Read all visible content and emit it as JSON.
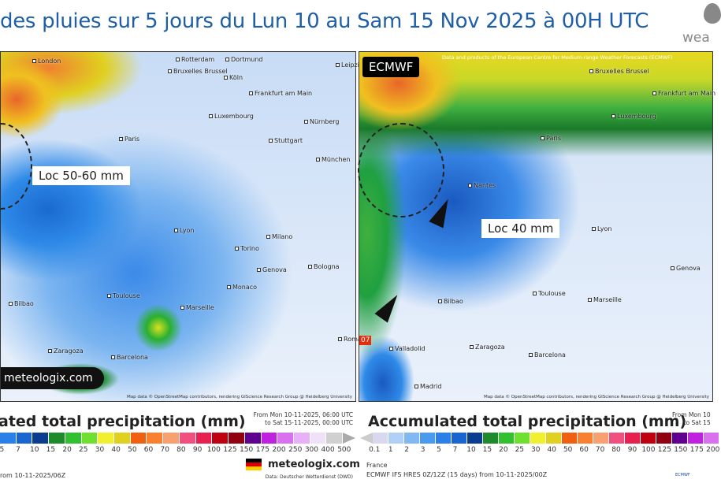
{
  "title": "des pluies sur 5 jours du Lun 10 au Sam 15 Nov 2025 à 00H UTC",
  "brand": "wea",
  "left_map": {
    "cities": [
      [
        "London",
        40,
        7
      ],
      [
        "Rotterdam",
        222,
        5
      ],
      [
        "Dortmund",
        285,
        5
      ],
      [
        "Köln",
        283,
        28
      ],
      [
        "Leipzig",
        425,
        12
      ],
      [
        "Bruxelles Brussel",
        212,
        20
      ],
      [
        "Frankfurt am Main",
        315,
        48
      ],
      [
        "Luxembourg",
        264,
        77
      ],
      [
        "Nürnberg",
        385,
        84
      ],
      [
        "Paris",
        150,
        106
      ],
      [
        "Stuttgart",
        340,
        108
      ],
      [
        "München",
        400,
        132
      ],
      [
        "Lyon",
        220,
        222
      ],
      [
        "Milano",
        337,
        230
      ],
      [
        "Torino",
        297,
        245
      ],
      [
        "Bologna",
        390,
        268
      ],
      [
        "Genova",
        325,
        272
      ],
      [
        "Monaco",
        287,
        294
      ],
      [
        "Marseille",
        228,
        320
      ],
      [
        "Toulouse",
        135,
        305
      ],
      [
        "Bilbao",
        10,
        315
      ],
      [
        "Zaragoza",
        60,
        375
      ],
      [
        "Barcelona",
        140,
        383
      ],
      [
        "Roma",
        428,
        360
      ]
    ],
    "callout": "Loc 50-60 mm",
    "logo": "meteologix.com",
    "attribution": "Map data © OpenStreetMap contributors, rendering GIScience Research Group @ Heidelberg University"
  },
  "right_map": {
    "tag": "ECMWF",
    "header": "Data and products of the European Centre for Medium-range Weather Forecasts (ECMWF)",
    "cities": [
      [
        "Bruxelles Brussel",
        292,
        20
      ],
      [
        "Frankfurt am Main",
        372,
        48
      ],
      [
        "Luxembourg",
        320,
        77
      ],
      [
        "Paris",
        230,
        105
      ],
      [
        "Nantes",
        138,
        165
      ],
      [
        "Lyon",
        295,
        220
      ],
      [
        "Toulouse",
        220,
        302
      ],
      [
        "Marseille",
        290,
        310
      ],
      [
        "Bilbao",
        100,
        312
      ],
      [
        "Valladolid",
        38,
        372
      ],
      [
        "Zaragoza",
        140,
        370
      ],
      [
        "Barcelona",
        215,
        380
      ],
      [
        "Madrid",
        70,
        420
      ],
      [
        "Genova",
        395,
        270
      ]
    ],
    "callout": "Loc 40 mm",
    "marker": "07",
    "attribution": "Map data © OpenStreetMap contributors, rendering GIScience Research Group @ Heidelberg University"
  },
  "left_legend": {
    "title": "ated total precipitation (mm)",
    "period_from": "From Mon 10-11-2025, 06:00 UTC",
    "period_to": "to Sat 15-11-2025, 00:00 UTC",
    "ticks": [
      "5",
      "7",
      "10",
      "15",
      "20",
      "25",
      "30",
      "40",
      "50",
      "60",
      "70",
      "80",
      "90",
      "100",
      "125",
      "150",
      "175",
      "200",
      "250",
      "300",
      "400",
      "500"
    ],
    "run": "rom  10-11-2025/06Z",
    "site": "meteologix.com",
    "source": "Data: Deutscher Wetterdienst (DWD)"
  },
  "right_legend": {
    "title": "Accumulated total precipitation (mm)",
    "period_from": "From Mon 10",
    "period_to": "to Sat 15",
    "ticks": [
      "0.1",
      "1",
      "2",
      "3",
      "5",
      "7",
      "10",
      "15",
      "20",
      "25",
      "30",
      "40",
      "50",
      "60",
      "70",
      "80",
      "90",
      "100",
      "125",
      "150",
      "175",
      "200"
    ],
    "region": "France",
    "run": "ECMWF IFS HRES 0Z/12Z (15 days) from  10-11-2025/00Z",
    "ecmwf_logo": "ECMWF"
  },
  "colors": {
    "scale": [
      "#d8d8ee",
      "#b0d0f8",
      "#80b8f4",
      "#4a9af0",
      "#2a80e8",
      "#1a66d0",
      "#0a3c90",
      "#1e8a2a",
      "#30c030",
      "#70e030",
      "#f0f030",
      "#e0d020",
      "#f06010",
      "#f88030",
      "#f8a070",
      "#f05080",
      "#e82050",
      "#c00010",
      "#900010",
      "#600090",
      "#c020e0",
      "#d870f0",
      "#e8b0f8",
      "#f0e0f8",
      "#d0d0d0"
    ],
    "title": "#1f5fa8"
  }
}
